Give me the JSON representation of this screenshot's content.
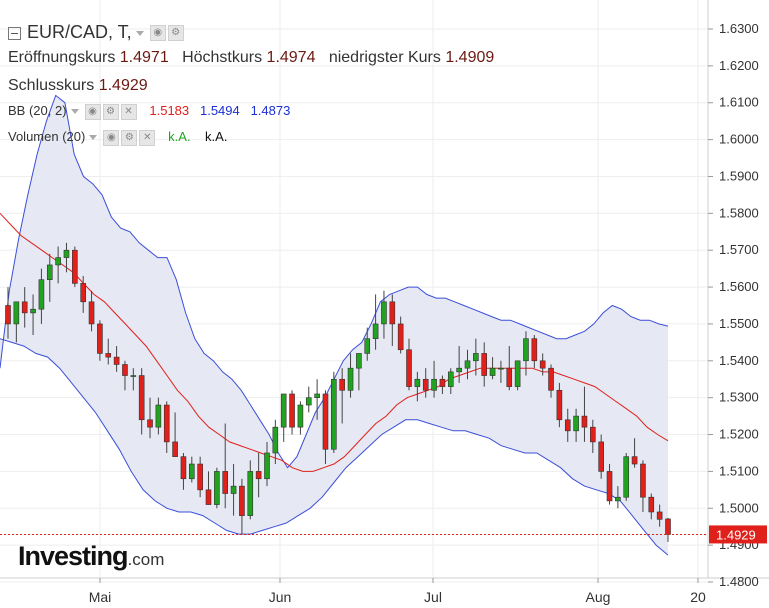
{
  "header": {
    "symbol": "EUR/CAD, T,",
    "open_label": "Eröffnungskurs",
    "open_value": "1.4971",
    "high_label": "Höchstkurs",
    "high_value": "1.4974",
    "low_label": "niedrigster Kurs",
    "low_value": "1.4909",
    "close_label": "Schlusskurs",
    "close_value": "1.4929"
  },
  "indicators": {
    "bb_label": "BB (20, 2)",
    "bb_middle": "1.5183",
    "bb_upper": "1.5494",
    "bb_lower": "1.4873",
    "vol_label": "Volumen (20)",
    "vol_value1": "k.A.",
    "vol_value2": "k.A."
  },
  "logo": {
    "brand": "Investing",
    "domain": ".com"
  },
  "colors": {
    "up": "#21a321",
    "down": "#e0201a",
    "band_fill": "#e6e8f3",
    "band_line": "#3b4fd8",
    "middle_line": "#e0201a",
    "price_line": "#e0201a"
  },
  "chart_data": {
    "type": "candlestick",
    "y_range": [
      1.475,
      1.635
    ],
    "y_ticks": [
      "1.6300",
      "1.6200",
      "1.6100",
      "1.6000",
      "1.5900",
      "1.5800",
      "1.5700",
      "1.5600",
      "1.5500",
      "1.5400",
      "1.5300",
      "1.5200",
      "1.5100",
      "1.5000",
      "1.4900",
      "1.4800"
    ],
    "x_ticks": [
      "Mai",
      "Jun",
      "Jul",
      "Aug",
      "20"
    ],
    "last_price": "1.4929",
    "candles": [
      [
        1.555,
        1.56,
        1.546,
        1.55
      ],
      [
        1.55,
        1.556,
        1.545,
        1.556
      ],
      [
        1.556,
        1.56,
        1.549,
        1.553
      ],
      [
        1.553,
        1.558,
        1.547,
        1.554
      ],
      [
        1.554,
        1.565,
        1.55,
        1.562
      ],
      [
        1.562,
        1.569,
        1.556,
        1.566
      ],
      [
        1.566,
        1.571,
        1.561,
        1.568
      ],
      [
        1.568,
        1.572,
        1.564,
        1.57
      ],
      [
        1.57,
        1.571,
        1.56,
        1.561
      ],
      [
        1.561,
        1.563,
        1.553,
        1.556
      ],
      [
        1.556,
        1.559,
        1.548,
        1.55
      ],
      [
        1.55,
        1.551,
        1.54,
        1.542
      ],
      [
        1.542,
        1.546,
        1.539,
        1.541
      ],
      [
        1.541,
        1.544,
        1.537,
        1.539
      ],
      [
        1.539,
        1.54,
        1.532,
        1.536
      ],
      [
        1.536,
        1.538,
        1.532,
        1.536
      ],
      [
        1.536,
        1.538,
        1.52,
        1.524
      ],
      [
        1.524,
        1.53,
        1.519,
        1.522
      ],
      [
        1.522,
        1.53,
        1.52,
        1.528
      ],
      [
        1.528,
        1.529,
        1.515,
        1.518
      ],
      [
        1.518,
        1.526,
        1.514,
        1.514
      ],
      [
        1.514,
        1.515,
        1.505,
        1.508
      ],
      [
        1.508,
        1.514,
        1.507,
        1.512
      ],
      [
        1.512,
        1.514,
        1.503,
        1.505
      ],
      [
        1.505,
        1.51,
        1.501,
        1.501
      ],
      [
        1.501,
        1.511,
        1.5,
        1.51
      ],
      [
        1.51,
        1.523,
        1.5,
        1.504
      ],
      [
        1.504,
        1.512,
        1.498,
        1.506
      ],
      [
        1.506,
        1.508,
        1.493,
        1.498
      ],
      [
        1.498,
        1.513,
        1.497,
        1.51
      ],
      [
        1.51,
        1.515,
        1.503,
        1.508
      ],
      [
        1.508,
        1.518,
        1.506,
        1.515
      ],
      [
        1.515,
        1.524,
        1.512,
        1.522
      ],
      [
        1.522,
        1.531,
        1.518,
        1.531
      ],
      [
        1.531,
        1.532,
        1.52,
        1.522
      ],
      [
        1.522,
        1.529,
        1.52,
        1.528
      ],
      [
        1.528,
        1.533,
        1.526,
        1.53
      ],
      [
        1.53,
        1.535,
        1.524,
        1.531
      ],
      [
        1.531,
        1.532,
        1.512,
        1.516
      ],
      [
        1.516,
        1.537,
        1.515,
        1.535
      ],
      [
        1.535,
        1.538,
        1.523,
        1.532
      ],
      [
        1.532,
        1.542,
        1.53,
        1.538
      ],
      [
        1.538,
        1.542,
        1.532,
        1.542
      ],
      [
        1.542,
        1.549,
        1.54,
        1.546
      ],
      [
        1.546,
        1.558,
        1.543,
        1.55
      ],
      [
        1.55,
        1.559,
        1.546,
        1.556
      ],
      [
        1.556,
        1.558,
        1.544,
        1.55
      ],
      [
        1.55,
        1.552,
        1.542,
        1.543
      ],
      [
        1.543,
        1.546,
        1.532,
        1.533
      ],
      [
        1.533,
        1.537,
        1.529,
        1.535
      ],
      [
        1.535,
        1.538,
        1.53,
        1.532
      ],
      [
        1.532,
        1.54,
        1.53,
        1.535
      ],
      [
        1.535,
        1.536,
        1.531,
        1.533
      ],
      [
        1.533,
        1.538,
        1.531,
        1.537
      ],
      [
        1.537,
        1.544,
        1.534,
        1.538
      ],
      [
        1.538,
        1.543,
        1.535,
        1.54
      ],
      [
        1.54,
        1.546,
        1.536,
        1.542
      ],
      [
        1.542,
        1.545,
        1.533,
        1.536
      ],
      [
        1.536,
        1.541,
        1.535,
        1.538
      ],
      [
        1.538,
        1.54,
        1.534,
        1.538
      ],
      [
        1.538,
        1.544,
        1.532,
        1.533
      ],
      [
        1.533,
        1.54,
        1.532,
        1.54
      ],
      [
        1.54,
        1.548,
        1.536,
        1.546
      ],
      [
        1.546,
        1.547,
        1.538,
        1.54
      ],
      [
        1.54,
        1.542,
        1.536,
        1.538
      ],
      [
        1.538,
        1.539,
        1.53,
        1.532
      ],
      [
        1.532,
        1.534,
        1.522,
        1.524
      ],
      [
        1.524,
        1.527,
        1.518,
        1.521
      ],
      [
        1.521,
        1.527,
        1.518,
        1.525
      ],
      [
        1.525,
        1.533,
        1.518,
        1.522
      ],
      [
        1.522,
        1.524,
        1.515,
        1.518
      ],
      [
        1.518,
        1.52,
        1.508,
        1.51
      ],
      [
        1.51,
        1.512,
        1.501,
        1.502
      ],
      [
        1.502,
        1.506,
        1.5,
        1.503
      ],
      [
        1.503,
        1.515,
        1.502,
        1.514
      ],
      [
        1.514,
        1.519,
        1.511,
        1.512
      ],
      [
        1.512,
        1.513,
        1.499,
        1.503
      ],
      [
        1.503,
        1.504,
        1.497,
        1.499
      ],
      [
        1.499,
        1.501,
        1.495,
        1.497
      ],
      [
        1.4971,
        1.4974,
        1.4909,
        1.4929
      ]
    ],
    "bb_upper": [
      1.538,
      1.559,
      1.573,
      1.585,
      1.596,
      1.605,
      1.612,
      1.61,
      1.596,
      1.59,
      1.588,
      1.585,
      1.579,
      1.576,
      1.575,
      1.572,
      1.57,
      1.568,
      1.568,
      1.562,
      1.553,
      1.546,
      1.542,
      1.54,
      1.537,
      1.535,
      1.532,
      1.528,
      1.524,
      1.52,
      1.515,
      1.511,
      1.514,
      1.52,
      1.526,
      1.53,
      1.535,
      1.54,
      1.543,
      1.545,
      1.55,
      1.556,
      1.558,
      1.559,
      1.56,
      1.56,
      1.558,
      1.557,
      1.557,
      1.556,
      1.555,
      1.554,
      1.553,
      1.552,
      1.551,
      1.551,
      1.55,
      1.549,
      1.548,
      1.547,
      1.546,
      1.546,
      1.547,
      1.548,
      1.55,
      1.553,
      1.555,
      1.554,
      1.552,
      1.551,
      1.551,
      1.55,
      1.5494
    ],
    "bb_middle": [
      1.58,
      1.577,
      1.574,
      1.572,
      1.57,
      1.568,
      1.566,
      1.564,
      1.561,
      1.558,
      1.556,
      1.553,
      1.55,
      1.547,
      1.544,
      1.54,
      1.536,
      1.532,
      1.529,
      1.525,
      1.522,
      1.52,
      1.518,
      1.517,
      1.516,
      1.515,
      1.514,
      1.513,
      1.511,
      1.51,
      1.51,
      1.511,
      1.512,
      1.514,
      1.517,
      1.52,
      1.523,
      1.525,
      1.528,
      1.53,
      1.531,
      1.532,
      1.533,
      1.535,
      1.536,
      1.537,
      1.538,
      1.538,
      1.538,
      1.538,
      1.538,
      1.538,
      1.537,
      1.537,
      1.536,
      1.535,
      1.534,
      1.533,
      1.531,
      1.529,
      1.527,
      1.525,
      1.522,
      1.52,
      1.5183
    ],
    "bb_lower": [
      1.546,
      1.545,
      1.544,
      1.542,
      1.541,
      1.538,
      1.534,
      1.53,
      1.526,
      1.521,
      1.516,
      1.51,
      1.505,
      1.502,
      1.5,
      1.499,
      1.499,
      1.498,
      1.496,
      1.494,
      1.493,
      1.493,
      1.494,
      1.495,
      1.496,
      1.498,
      1.5,
      1.503,
      1.507,
      1.511,
      1.514,
      1.517,
      1.52,
      1.522,
      1.524,
      1.524,
      1.523,
      1.522,
      1.521,
      1.521,
      1.52,
      1.519,
      1.517,
      1.516,
      1.515,
      1.515,
      1.513,
      1.511,
      1.508,
      1.506,
      1.505,
      1.504,
      1.502,
      1.498,
      1.494,
      1.49,
      1.4873
    ]
  }
}
